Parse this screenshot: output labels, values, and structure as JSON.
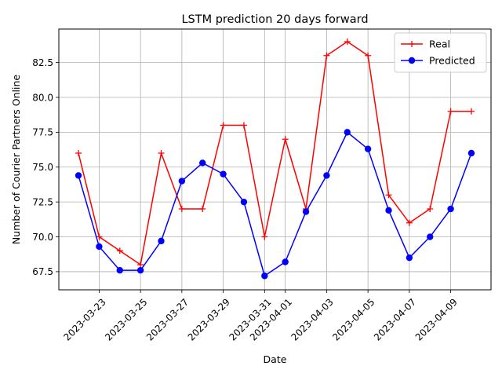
{
  "chart_data": {
    "type": "line",
    "title": "LSTM prediction 20 days forward",
    "xlabel": "Date",
    "ylabel": "Number of Courier Partners Online",
    "x": [
      "2023-03-22",
      "2023-03-23",
      "2023-03-24",
      "2023-03-25",
      "2023-03-26",
      "2023-03-27",
      "2023-03-28",
      "2023-03-29",
      "2023-03-30",
      "2023-03-31",
      "2023-04-01",
      "2023-04-02",
      "2023-04-03",
      "2023-04-04",
      "2023-04-05",
      "2023-04-06",
      "2023-04-07",
      "2023-04-08",
      "2023-04-09",
      "2023-04-10"
    ],
    "x_tick_labels": [
      "2023-03-23",
      "2023-03-25",
      "2023-03-27",
      "2023-03-29",
      "2023-03-31",
      "2023-04-01",
      "2023-04-03",
      "2023-04-05",
      "2023-04-07",
      "2023-04-09"
    ],
    "y_ticks": [
      "67.5",
      "70.0",
      "72.5",
      "75.0",
      "77.5",
      "80.0",
      "82.5"
    ],
    "ylim": [
      66.2,
      84.9
    ],
    "grid": true,
    "legend_position": "top-right",
    "series": [
      {
        "name": "Real",
        "color": "#ff0000",
        "marker": "plus",
        "values": [
          76,
          70,
          69,
          68,
          76,
          72,
          72,
          78,
          78,
          70,
          77,
          72,
          83,
          84,
          83,
          73,
          71,
          72,
          79,
          79
        ]
      },
      {
        "name": "Predicted",
        "color": "#0000ff",
        "marker": "circle",
        "values": [
          74.4,
          69.3,
          67.6,
          67.6,
          69.7,
          74.0,
          75.3,
          74.5,
          72.5,
          67.2,
          68.2,
          71.8,
          74.4,
          77.5,
          76.3,
          71.9,
          68.5,
          70.0,
          72.0,
          76.0
        ]
      }
    ]
  }
}
